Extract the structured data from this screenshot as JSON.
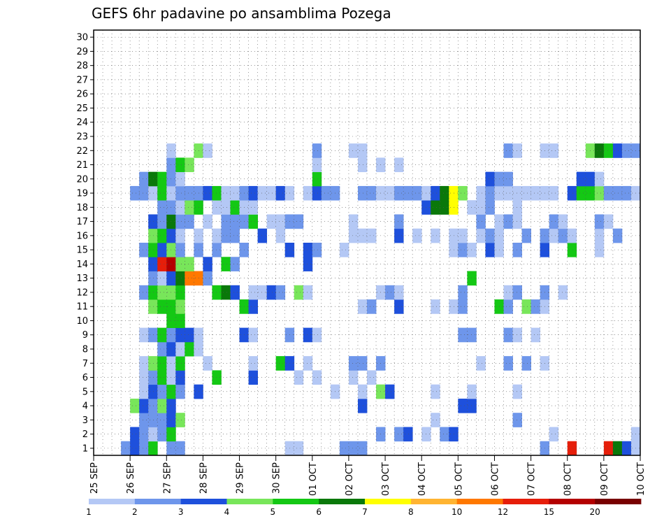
{
  "chart_data": {
    "type": "heatmap",
    "title": "GEFS 6hr padavine po ansamblima Pozega",
    "xlabel": "",
    "ylabel": "",
    "x_ticks": [
      "25 SEP",
      "26 SEP",
      "27 SEP",
      "28 SEP",
      "29 SEP",
      "30 SEP",
      "01 OCT",
      "02 OCT",
      "03 OCT",
      "04 OCT",
      "05 OCT",
      "06 OCT",
      "07 OCT",
      "08 OCT",
      "09 OCT",
      "10 OCT"
    ],
    "y_ticks": [
      1,
      2,
      3,
      4,
      5,
      6,
      7,
      8,
      9,
      10,
      11,
      12,
      13,
      14,
      15,
      16,
      17,
      18,
      19,
      20,
      21,
      22,
      23,
      24,
      25,
      26,
      27,
      28,
      29,
      30
    ],
    "y_range": [
      0,
      30
    ],
    "grid": true,
    "color_levels": [
      1,
      2,
      3,
      4,
      5,
      6,
      7,
      8,
      10,
      12,
      15,
      20
    ],
    "color_labels": [
      "1",
      "2",
      "3",
      "4",
      "5",
      "6",
      "7",
      "8",
      "10",
      "12",
      "15",
      "20"
    ],
    "colors": [
      "#b4c8f5",
      "#6e96eb",
      "#1e50dc",
      "#78e65a",
      "#14c814",
      "#0a780a",
      "#ffff00",
      "#ffb432",
      "#ff7800",
      "#e61e0a",
      "#b40000",
      "#780000"
    ],
    "cells": [
      [
        0,
        3,
        1
      ],
      [
        0,
        4,
        2
      ],
      [
        0,
        5,
        1
      ],
      [
        0,
        6,
        4
      ],
      [
        0,
        8,
        1
      ],
      [
        0,
        9,
        1
      ],
      [
        0,
        21,
        0
      ],
      [
        0,
        22,
        0
      ],
      [
        0,
        27,
        1
      ],
      [
        0,
        28,
        1
      ],
      [
        0,
        29,
        1
      ],
      [
        0,
        49,
        1
      ],
      [
        0,
        52,
        9
      ],
      [
        0,
        56,
        9
      ],
      [
        0,
        57,
        5
      ],
      [
        0,
        58,
        2
      ],
      [
        0,
        59,
        0
      ],
      [
        1,
        4,
        2
      ],
      [
        1,
        5,
        1
      ],
      [
        1,
        6,
        0
      ],
      [
        1,
        7,
        1
      ],
      [
        1,
        8,
        4
      ],
      [
        1,
        31,
        1
      ],
      [
        1,
        33,
        1
      ],
      [
        1,
        34,
        2
      ],
      [
        1,
        36,
        0
      ],
      [
        1,
        38,
        1
      ],
      [
        1,
        39,
        2
      ],
      [
        1,
        50,
        0
      ],
      [
        1,
        59,
        0
      ],
      [
        2,
        5,
        1
      ],
      [
        2,
        6,
        1
      ],
      [
        2,
        7,
        1
      ],
      [
        2,
        8,
        2
      ],
      [
        2,
        9,
        3
      ],
      [
        2,
        37,
        0
      ],
      [
        2,
        46,
        1
      ],
      [
        3,
        4,
        3
      ],
      [
        3,
        5,
        2
      ],
      [
        3,
        6,
        1
      ],
      [
        3,
        7,
        3
      ],
      [
        3,
        8,
        2
      ],
      [
        3,
        29,
        2
      ],
      [
        3,
        40,
        2
      ],
      [
        3,
        41,
        2
      ],
      [
        4,
        5,
        0
      ],
      [
        4,
        6,
        2
      ],
      [
        4,
        7,
        1
      ],
      [
        4,
        8,
        4
      ],
      [
        4,
        9,
        1
      ],
      [
        4,
        11,
        2
      ],
      [
        4,
        26,
        0
      ],
      [
        4,
        29,
        0
      ],
      [
        4,
        31,
        3
      ],
      [
        4,
        32,
        2
      ],
      [
        4,
        37,
        0
      ],
      [
        4,
        41,
        0
      ],
      [
        4,
        46,
        0
      ],
      [
        5,
        5,
        0
      ],
      [
        5,
        6,
        1
      ],
      [
        5,
        7,
        4
      ],
      [
        5,
        8,
        0
      ],
      [
        5,
        9,
        2
      ],
      [
        5,
        13,
        4
      ],
      [
        5,
        17,
        2
      ],
      [
        5,
        22,
        0
      ],
      [
        5,
        24,
        0
      ],
      [
        5,
        28,
        0
      ],
      [
        5,
        30,
        0
      ],
      [
        6,
        5,
        0
      ],
      [
        6,
        6,
        3
      ],
      [
        6,
        7,
        4
      ],
      [
        6,
        8,
        0
      ],
      [
        6,
        9,
        4
      ],
      [
        6,
        12,
        0
      ],
      [
        6,
        17,
        0
      ],
      [
        6,
        20,
        4
      ],
      [
        6,
        21,
        2
      ],
      [
        6,
        23,
        0
      ],
      [
        6,
        28,
        1
      ],
      [
        6,
        29,
        1
      ],
      [
        6,
        31,
        1
      ],
      [
        6,
        42,
        0
      ],
      [
        6,
        45,
        1
      ],
      [
        6,
        47,
        1
      ],
      [
        6,
        49,
        0
      ],
      [
        7,
        7,
        1
      ],
      [
        7,
        8,
        2
      ],
      [
        7,
        9,
        0
      ],
      [
        7,
        10,
        4
      ],
      [
        7,
        11,
        0
      ],
      [
        8,
        5,
        0
      ],
      [
        8,
        6,
        1
      ],
      [
        8,
        7,
        4
      ],
      [
        8,
        8,
        1
      ],
      [
        8,
        9,
        2
      ],
      [
        8,
        10,
        2
      ],
      [
        8,
        11,
        0
      ],
      [
        8,
        16,
        2
      ],
      [
        8,
        17,
        0
      ],
      [
        8,
        21,
        1
      ],
      [
        8,
        23,
        2
      ],
      [
        8,
        24,
        0
      ],
      [
        8,
        40,
        1
      ],
      [
        8,
        41,
        1
      ],
      [
        8,
        45,
        1
      ],
      [
        8,
        46,
        0
      ],
      [
        8,
        48,
        0
      ],
      [
        9,
        8,
        4
      ],
      [
        9,
        9,
        4
      ],
      [
        10,
        6,
        3
      ],
      [
        10,
        7,
        4
      ],
      [
        10,
        8,
        4
      ],
      [
        10,
        9,
        3
      ],
      [
        10,
        16,
        4
      ],
      [
        10,
        17,
        2
      ],
      [
        10,
        29,
        0
      ],
      [
        10,
        30,
        1
      ],
      [
        10,
        33,
        2
      ],
      [
        10,
        37,
        0
      ],
      [
        10,
        39,
        0
      ],
      [
        10,
        40,
        1
      ],
      [
        10,
        44,
        4
      ],
      [
        10,
        45,
        1
      ],
      [
        10,
        47,
        3
      ],
      [
        10,
        48,
        1
      ],
      [
        10,
        49,
        0
      ],
      [
        11,
        5,
        1
      ],
      [
        11,
        6,
        4
      ],
      [
        11,
        7,
        3
      ],
      [
        11,
        8,
        3
      ],
      [
        11,
        9,
        4
      ],
      [
        11,
        13,
        4
      ],
      [
        11,
        14,
        5
      ],
      [
        11,
        15,
        2
      ],
      [
        11,
        17,
        0
      ],
      [
        11,
        18,
        0
      ],
      [
        11,
        19,
        2
      ],
      [
        11,
        20,
        1
      ],
      [
        11,
        22,
        3
      ],
      [
        11,
        23,
        0
      ],
      [
        11,
        31,
        0
      ],
      [
        11,
        32,
        1
      ],
      [
        11,
        33,
        0
      ],
      [
        11,
        40,
        1
      ],
      [
        11,
        45,
        0
      ],
      [
        11,
        46,
        1
      ],
      [
        11,
        49,
        1
      ],
      [
        11,
        51,
        0
      ],
      [
        12,
        6,
        1
      ],
      [
        12,
        7,
        0
      ],
      [
        12,
        8,
        2
      ],
      [
        12,
        9,
        5
      ],
      [
        12,
        10,
        8
      ],
      [
        12,
        11,
        8
      ],
      [
        12,
        12,
        1
      ],
      [
        12,
        41,
        4
      ],
      [
        13,
        6,
        2
      ],
      [
        13,
        7,
        9
      ],
      [
        13,
        8,
        10
      ],
      [
        13,
        9,
        3
      ],
      [
        13,
        10,
        3
      ],
      [
        13,
        12,
        2
      ],
      [
        13,
        14,
        4
      ],
      [
        13,
        15,
        1
      ],
      [
        13,
        23,
        2
      ],
      [
        14,
        5,
        1
      ],
      [
        14,
        6,
        4
      ],
      [
        14,
        7,
        2
      ],
      [
        14,
        8,
        3
      ],
      [
        14,
        9,
        1
      ],
      [
        14,
        11,
        1
      ],
      [
        14,
        13,
        1
      ],
      [
        14,
        16,
        1
      ],
      [
        14,
        21,
        2
      ],
      [
        14,
        23,
        2
      ],
      [
        14,
        24,
        1
      ],
      [
        14,
        27,
        0
      ],
      [
        14,
        39,
        0
      ],
      [
        14,
        40,
        1
      ],
      [
        14,
        41,
        0
      ],
      [
        14,
        43,
        2
      ],
      [
        14,
        44,
        0
      ],
      [
        14,
        46,
        1
      ],
      [
        14,
        49,
        2
      ],
      [
        14,
        52,
        4
      ],
      [
        14,
        55,
        0
      ],
      [
        15,
        6,
        3
      ],
      [
        15,
        7,
        4
      ],
      [
        15,
        8,
        2
      ],
      [
        15,
        9,
        0
      ],
      [
        15,
        11,
        0
      ],
      [
        15,
        13,
        0
      ],
      [
        15,
        14,
        1
      ],
      [
        15,
        15,
        1
      ],
      [
        15,
        18,
        2
      ],
      [
        15,
        20,
        0
      ],
      [
        15,
        28,
        0
      ],
      [
        15,
        29,
        0
      ],
      [
        15,
        30,
        0
      ],
      [
        15,
        33,
        2
      ],
      [
        15,
        35,
        0
      ],
      [
        15,
        37,
        0
      ],
      [
        15,
        39,
        0
      ],
      [
        15,
        40,
        0
      ],
      [
        15,
        42,
        0
      ],
      [
        15,
        43,
        1
      ],
      [
        15,
        44,
        0
      ],
      [
        15,
        47,
        1
      ],
      [
        15,
        49,
        1
      ],
      [
        15,
        50,
        0
      ],
      [
        15,
        51,
        1
      ],
      [
        15,
        52,
        0
      ],
      [
        15,
        55,
        0
      ],
      [
        15,
        57,
        1
      ],
      [
        16,
        6,
        2
      ],
      [
        16,
        7,
        1
      ],
      [
        16,
        8,
        5
      ],
      [
        16,
        9,
        1
      ],
      [
        16,
        10,
        1
      ],
      [
        16,
        12,
        0
      ],
      [
        16,
        14,
        1
      ],
      [
        16,
        15,
        1
      ],
      [
        16,
        16,
        1
      ],
      [
        16,
        17,
        4
      ],
      [
        16,
        19,
        0
      ],
      [
        16,
        20,
        0
      ],
      [
        16,
        21,
        1
      ],
      [
        16,
        22,
        1
      ],
      [
        16,
        28,
        0
      ],
      [
        16,
        33,
        1
      ],
      [
        16,
        42,
        1
      ],
      [
        16,
        44,
        0
      ],
      [
        16,
        45,
        1
      ],
      [
        16,
        46,
        0
      ],
      [
        16,
        50,
        1
      ],
      [
        16,
        51,
        0
      ],
      [
        16,
        55,
        1
      ],
      [
        16,
        56,
        0
      ],
      [
        17,
        7,
        1
      ],
      [
        17,
        8,
        1
      ],
      [
        17,
        9,
        0
      ],
      [
        17,
        10,
        3
      ],
      [
        17,
        11,
        4
      ],
      [
        17,
        13,
        0
      ],
      [
        17,
        14,
        0
      ],
      [
        17,
        15,
        4
      ],
      [
        17,
        16,
        0
      ],
      [
        17,
        17,
        0
      ],
      [
        17,
        36,
        2
      ],
      [
        17,
        37,
        5
      ],
      [
        17,
        38,
        5
      ],
      [
        17,
        39,
        6
      ],
      [
        17,
        41,
        0
      ],
      [
        17,
        42,
        0
      ],
      [
        17,
        43,
        1
      ],
      [
        17,
        46,
        0
      ],
      [
        18,
        4,
        1
      ],
      [
        18,
        5,
        1
      ],
      [
        18,
        6,
        0
      ],
      [
        18,
        7,
        4
      ],
      [
        18,
        8,
        0
      ],
      [
        18,
        9,
        1
      ],
      [
        18,
        10,
        1
      ],
      [
        18,
        11,
        1
      ],
      [
        18,
        12,
        2
      ],
      [
        18,
        13,
        4
      ],
      [
        18,
        14,
        0
      ],
      [
        18,
        15,
        0
      ],
      [
        18,
        16,
        1
      ],
      [
        18,
        17,
        2
      ],
      [
        18,
        18,
        0
      ],
      [
        18,
        19,
        0
      ],
      [
        18,
        20,
        2
      ],
      [
        18,
        21,
        0
      ],
      [
        18,
        23,
        0
      ],
      [
        18,
        24,
        2
      ],
      [
        18,
        25,
        1
      ],
      [
        18,
        26,
        1
      ],
      [
        18,
        29,
        1
      ],
      [
        18,
        30,
        1
      ],
      [
        18,
        31,
        0
      ],
      [
        18,
        32,
        0
      ],
      [
        18,
        33,
        1
      ],
      [
        18,
        34,
        1
      ],
      [
        18,
        35,
        1
      ],
      [
        18,
        36,
        0
      ],
      [
        18,
        37,
        2
      ],
      [
        18,
        38,
        5
      ],
      [
        18,
        39,
        6
      ],
      [
        18,
        40,
        3
      ],
      [
        18,
        42,
        0
      ],
      [
        18,
        43,
        1
      ],
      [
        18,
        44,
        0
      ],
      [
        18,
        45,
        0
      ],
      [
        18,
        46,
        0
      ],
      [
        18,
        47,
        0
      ],
      [
        18,
        48,
        0
      ],
      [
        18,
        49,
        0
      ],
      [
        18,
        50,
        0
      ],
      [
        18,
        52,
        2
      ],
      [
        18,
        53,
        4
      ],
      [
        18,
        54,
        4
      ],
      [
        18,
        55,
        3
      ],
      [
        18,
        56,
        1
      ],
      [
        18,
        57,
        1
      ],
      [
        18,
        58,
        1
      ],
      [
        18,
        59,
        0
      ],
      [
        19,
        5,
        1
      ],
      [
        19,
        6,
        5
      ],
      [
        19,
        7,
        4
      ],
      [
        19,
        8,
        1
      ],
      [
        19,
        9,
        0
      ],
      [
        19,
        24,
        4
      ],
      [
        19,
        43,
        2
      ],
      [
        19,
        44,
        1
      ],
      [
        19,
        45,
        1
      ],
      [
        19,
        53,
        2
      ],
      [
        19,
        54,
        2
      ],
      [
        19,
        55,
        0
      ],
      [
        20,
        8,
        1
      ],
      [
        20,
        9,
        4
      ],
      [
        20,
        10,
        3
      ],
      [
        20,
        24,
        0
      ],
      [
        20,
        29,
        0
      ],
      [
        20,
        31,
        0
      ],
      [
        20,
        33,
        0
      ],
      [
        21,
        8,
        0
      ],
      [
        21,
        11,
        3
      ],
      [
        21,
        12,
        0
      ],
      [
        21,
        24,
        1
      ],
      [
        21,
        28,
        0
      ],
      [
        21,
        29,
        0
      ],
      [
        21,
        45,
        1
      ],
      [
        21,
        46,
        0
      ],
      [
        21,
        49,
        0
      ],
      [
        21,
        50,
        0
      ],
      [
        21,
        54,
        3
      ],
      [
        21,
        55,
        5
      ],
      [
        21,
        56,
        4
      ],
      [
        21,
        57,
        2
      ],
      [
        21,
        58,
        1
      ],
      [
        21,
        59,
        1
      ]
    ]
  },
  "colorbar": {
    "labels": [
      "1",
      "2",
      "3",
      "4",
      "5",
      "6",
      "7",
      "8",
      "10",
      "12",
      "15",
      "20"
    ]
  }
}
